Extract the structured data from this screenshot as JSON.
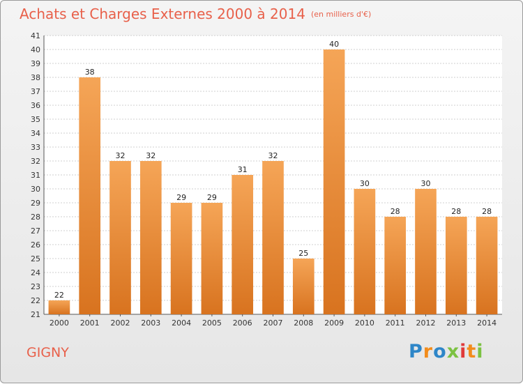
{
  "header": {
    "title": "Achats et Charges Externes 2000 à 2014",
    "subtitle": "(en milliers d'€)"
  },
  "footer": {
    "commune": "GIGNY",
    "logo_letters": [
      "P",
      "r",
      "o",
      "x",
      "i",
      "t",
      "i"
    ]
  },
  "colors": {
    "bar_top": "#f5a557",
    "bar_bottom": "#d8731f",
    "title": "#e8604a",
    "logo": [
      "#2e86c8",
      "#f28c1c",
      "#2e86c8",
      "#7cc242",
      "#e03a3a",
      "#f28c1c",
      "#7cc242"
    ]
  },
  "chart_data": {
    "type": "bar",
    "categories": [
      "2000",
      "2001",
      "2002",
      "2003",
      "2004",
      "2005",
      "2006",
      "2007",
      "2008",
      "2009",
      "2010",
      "2011",
      "2012",
      "2013",
      "2014"
    ],
    "values": [
      22,
      38,
      32,
      32,
      29,
      29,
      31,
      32,
      25,
      40,
      30,
      28,
      30,
      28,
      28
    ],
    "title": "Achats et Charges Externes 2000 à 2014",
    "ylim": [
      21,
      41
    ],
    "yticks": [
      "21",
      "22",
      "23",
      "24",
      "25",
      "26",
      "27",
      "28",
      "29",
      "30",
      "31",
      "32",
      "33",
      "34",
      "35",
      "36",
      "37",
      "38",
      "39",
      "40",
      "41"
    ],
    "grid": true
  }
}
